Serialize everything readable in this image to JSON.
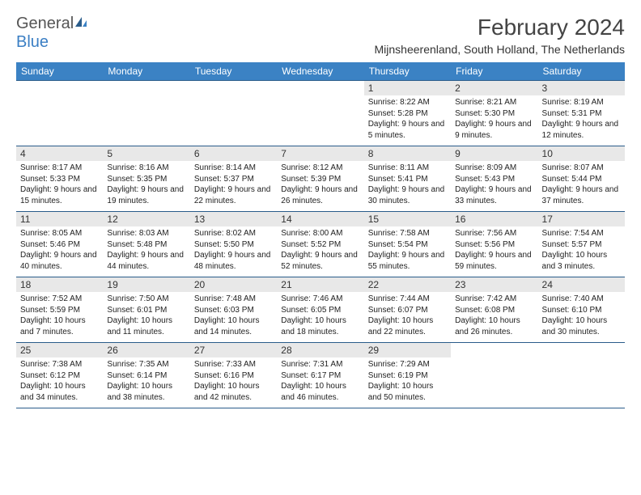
{
  "brand": {
    "name1": "General",
    "name2": "Blue"
  },
  "title": "February 2024",
  "subtitle": "Mijnsheerenland, South Holland, The Netherlands",
  "colors": {
    "header_bg": "#3b82c4",
    "border": "#2a5c8a",
    "daynum_bg": "#e8e8e8"
  },
  "day_headers": [
    "Sunday",
    "Monday",
    "Tuesday",
    "Wednesday",
    "Thursday",
    "Friday",
    "Saturday"
  ],
  "weeks": [
    [
      null,
      null,
      null,
      null,
      {
        "n": "1",
        "sr": "8:22 AM",
        "ss": "5:28 PM",
        "dl": "9 hours and 5 minutes."
      },
      {
        "n": "2",
        "sr": "8:21 AM",
        "ss": "5:30 PM",
        "dl": "9 hours and 9 minutes."
      },
      {
        "n": "3",
        "sr": "8:19 AM",
        "ss": "5:31 PM",
        "dl": "9 hours and 12 minutes."
      }
    ],
    [
      {
        "n": "4",
        "sr": "8:17 AM",
        "ss": "5:33 PM",
        "dl": "9 hours and 15 minutes."
      },
      {
        "n": "5",
        "sr": "8:16 AM",
        "ss": "5:35 PM",
        "dl": "9 hours and 19 minutes."
      },
      {
        "n": "6",
        "sr": "8:14 AM",
        "ss": "5:37 PM",
        "dl": "9 hours and 22 minutes."
      },
      {
        "n": "7",
        "sr": "8:12 AM",
        "ss": "5:39 PM",
        "dl": "9 hours and 26 minutes."
      },
      {
        "n": "8",
        "sr": "8:11 AM",
        "ss": "5:41 PM",
        "dl": "9 hours and 30 minutes."
      },
      {
        "n": "9",
        "sr": "8:09 AM",
        "ss": "5:43 PM",
        "dl": "9 hours and 33 minutes."
      },
      {
        "n": "10",
        "sr": "8:07 AM",
        "ss": "5:44 PM",
        "dl": "9 hours and 37 minutes."
      }
    ],
    [
      {
        "n": "11",
        "sr": "8:05 AM",
        "ss": "5:46 PM",
        "dl": "9 hours and 40 minutes."
      },
      {
        "n": "12",
        "sr": "8:03 AM",
        "ss": "5:48 PM",
        "dl": "9 hours and 44 minutes."
      },
      {
        "n": "13",
        "sr": "8:02 AM",
        "ss": "5:50 PM",
        "dl": "9 hours and 48 minutes."
      },
      {
        "n": "14",
        "sr": "8:00 AM",
        "ss": "5:52 PM",
        "dl": "9 hours and 52 minutes."
      },
      {
        "n": "15",
        "sr": "7:58 AM",
        "ss": "5:54 PM",
        "dl": "9 hours and 55 minutes."
      },
      {
        "n": "16",
        "sr": "7:56 AM",
        "ss": "5:56 PM",
        "dl": "9 hours and 59 minutes."
      },
      {
        "n": "17",
        "sr": "7:54 AM",
        "ss": "5:57 PM",
        "dl": "10 hours and 3 minutes."
      }
    ],
    [
      {
        "n": "18",
        "sr": "7:52 AM",
        "ss": "5:59 PM",
        "dl": "10 hours and 7 minutes."
      },
      {
        "n": "19",
        "sr": "7:50 AM",
        "ss": "6:01 PM",
        "dl": "10 hours and 11 minutes."
      },
      {
        "n": "20",
        "sr": "7:48 AM",
        "ss": "6:03 PM",
        "dl": "10 hours and 14 minutes."
      },
      {
        "n": "21",
        "sr": "7:46 AM",
        "ss": "6:05 PM",
        "dl": "10 hours and 18 minutes."
      },
      {
        "n": "22",
        "sr": "7:44 AM",
        "ss": "6:07 PM",
        "dl": "10 hours and 22 minutes."
      },
      {
        "n": "23",
        "sr": "7:42 AM",
        "ss": "6:08 PM",
        "dl": "10 hours and 26 minutes."
      },
      {
        "n": "24",
        "sr": "7:40 AM",
        "ss": "6:10 PM",
        "dl": "10 hours and 30 minutes."
      }
    ],
    [
      {
        "n": "25",
        "sr": "7:38 AM",
        "ss": "6:12 PM",
        "dl": "10 hours and 34 minutes."
      },
      {
        "n": "26",
        "sr": "7:35 AM",
        "ss": "6:14 PM",
        "dl": "10 hours and 38 minutes."
      },
      {
        "n": "27",
        "sr": "7:33 AM",
        "ss": "6:16 PM",
        "dl": "10 hours and 42 minutes."
      },
      {
        "n": "28",
        "sr": "7:31 AM",
        "ss": "6:17 PM",
        "dl": "10 hours and 46 minutes."
      },
      {
        "n": "29",
        "sr": "7:29 AM",
        "ss": "6:19 PM",
        "dl": "10 hours and 50 minutes."
      },
      null,
      null
    ]
  ],
  "labels": {
    "sunrise": "Sunrise:",
    "sunset": "Sunset:",
    "daylight": "Daylight:"
  }
}
